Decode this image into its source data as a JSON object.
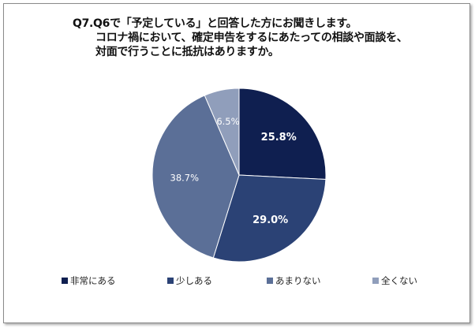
{
  "chart_data": {
    "type": "pie",
    "title": [
      "Q7.Q6で「予定している」と回答した方にお聞きします。",
      "コロナ禍において、確定申告をするにあたっての相談や面談を、",
      "対面で行うことに抵抗はありますか。"
    ],
    "categories": [
      "非常にある",
      "少しある",
      "あまりない",
      "全くない"
    ],
    "values": [
      25.8,
      29.0,
      38.7,
      6.5
    ],
    "labels": [
      "25.8%",
      "29.0%",
      "38.7%",
      "6.5%"
    ],
    "colors": [
      "#0f1f50",
      "#2b4275",
      "#5b6f97",
      "#909ebb"
    ],
    "label_colors": [
      "#ffffff",
      "#ffffff",
      "#ffffff",
      "#ffffff"
    ],
    "legend_position": "bottom"
  }
}
